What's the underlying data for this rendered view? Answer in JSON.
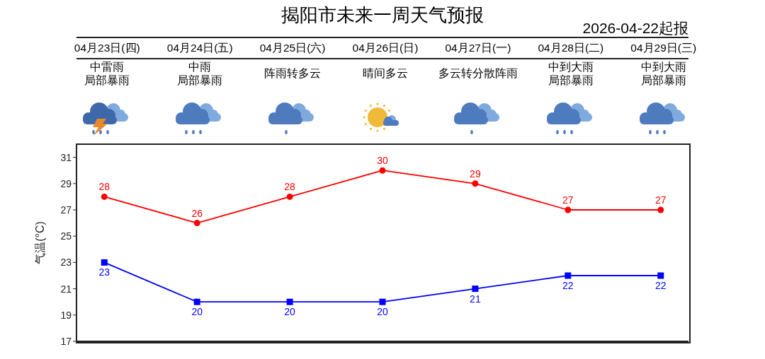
{
  "chart_data": {
    "type": "line",
    "title": "揭阳市未来一周天气预报",
    "subtitle": "2026-04-22起报",
    "ylabel": "气温(°C)",
    "categories": [
      null,
      null,
      null,
      null,
      null,
      null,
      null
    ],
    "tick_labels": "y",
    "series": [
      {
        "color": "#ff0000",
        "marker": "circle",
        "values": [
          28,
          26,
          28,
          30,
          29,
          27,
          27
        ]
      },
      {
        "color": "#0000ff",
        "marker": "square",
        "values": [
          23,
          20,
          20,
          20,
          21,
          22,
          22
        ]
      }
    ],
    "ylim": [
      17,
      32
    ],
    "yticks": [
      17,
      19,
      21,
      23,
      25,
      27,
      29,
      31
    ],
    "data_labels": true,
    "annotations": [
      "04月23日(四)",
      "04月24日(五)",
      "04月25日(六)",
      "04月26日(日)",
      "04月27日(一)",
      "04月28日(二)",
      "04月29日(三)",
      "中雷雨",
      "局部暴雨",
      "中雨",
      "局部暴雨",
      "阵雨转多云",
      "晴间多云",
      "多云转分散阵雨",
      "中到大雨",
      "局部暴雨",
      "中到大雨",
      "局部暴雨"
    ]
  }
}
